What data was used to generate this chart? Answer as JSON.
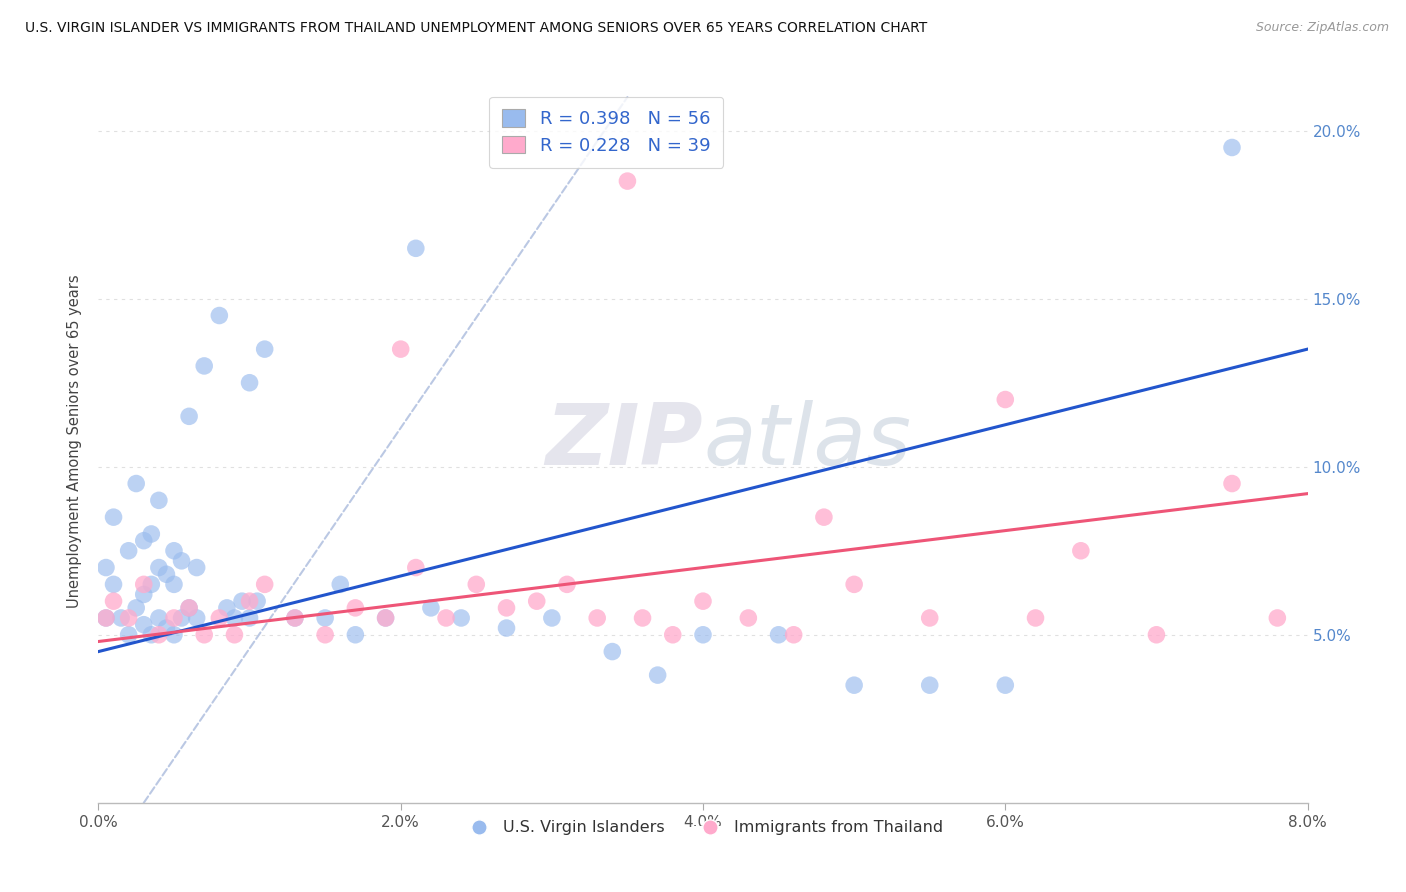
{
  "title": "U.S. VIRGIN ISLANDER VS IMMIGRANTS FROM THAILAND UNEMPLOYMENT AMONG SENIORS OVER 65 YEARS CORRELATION CHART",
  "source": "Source: ZipAtlas.com",
  "ylabel": "Unemployment Among Seniors over 65 years",
  "xlim": [
    0.0,
    8.0
  ],
  "ylim": [
    0.0,
    21.5
  ],
  "ytick_vals": [
    5.0,
    10.0,
    15.0,
    20.0
  ],
  "xtick_vals": [
    0.0,
    2.0,
    4.0,
    6.0,
    8.0
  ],
  "R_blue": 0.398,
  "N_blue": 56,
  "R_pink": 0.228,
  "N_pink": 39,
  "legend_label_blue": "U.S. Virgin Islanders",
  "legend_label_pink": "Immigrants from Thailand",
  "blue_scatter_color": "#99BBEE",
  "pink_scatter_color": "#FFAACC",
  "blue_line_color": "#2255CC",
  "pink_line_color": "#EE5577",
  "diag_line_color": "#AABBDD",
  "watermark_color": "#DDDDEE",
  "right_tick_color": "#5588CC",
  "blue_scatter_x": [
    0.05,
    0.05,
    0.1,
    0.1,
    0.15,
    0.2,
    0.2,
    0.25,
    0.25,
    0.3,
    0.3,
    0.3,
    0.35,
    0.35,
    0.35,
    0.4,
    0.4,
    0.4,
    0.45,
    0.45,
    0.5,
    0.5,
    0.5,
    0.55,
    0.55,
    0.6,
    0.6,
    0.65,
    0.65,
    0.7,
    0.8,
    0.85,
    0.9,
    0.95,
    1.0,
    1.0,
    1.05,
    1.1,
    1.3,
    1.5,
    1.6,
    1.7,
    1.9,
    2.1,
    2.2,
    2.4,
    2.7,
    3.0,
    3.4,
    3.7,
    4.0,
    4.5,
    5.0,
    5.5,
    6.0,
    7.5
  ],
  "blue_scatter_y": [
    5.5,
    7.0,
    6.5,
    8.5,
    5.5,
    5.0,
    7.5,
    5.8,
    9.5,
    5.3,
    6.2,
    7.8,
    5.0,
    6.5,
    8.0,
    5.5,
    7.0,
    9.0,
    5.2,
    6.8,
    5.0,
    6.5,
    7.5,
    5.5,
    7.2,
    5.8,
    11.5,
    5.5,
    7.0,
    13.0,
    14.5,
    5.8,
    5.5,
    6.0,
    5.5,
    12.5,
    6.0,
    13.5,
    5.5,
    5.5,
    6.5,
    5.0,
    5.5,
    16.5,
    5.8,
    5.5,
    5.2,
    5.5,
    4.5,
    3.8,
    5.0,
    5.0,
    3.5,
    3.5,
    3.5,
    19.5
  ],
  "pink_scatter_x": [
    0.05,
    0.1,
    0.2,
    0.3,
    0.4,
    0.5,
    0.6,
    0.7,
    0.8,
    0.9,
    1.0,
    1.1,
    1.3,
    1.5,
    1.7,
    1.9,
    2.1,
    2.3,
    2.5,
    2.7,
    2.9,
    3.1,
    3.3,
    3.5,
    3.6,
    3.8,
    4.0,
    4.3,
    4.6,
    5.0,
    5.5,
    6.0,
    6.5,
    7.0,
    7.5,
    7.8,
    4.8,
    2.0,
    6.2
  ],
  "pink_scatter_y": [
    5.5,
    6.0,
    5.5,
    6.5,
    5.0,
    5.5,
    5.8,
    5.0,
    5.5,
    5.0,
    6.0,
    6.5,
    5.5,
    5.0,
    5.8,
    5.5,
    7.0,
    5.5,
    6.5,
    5.8,
    6.0,
    6.5,
    5.5,
    18.5,
    5.5,
    5.0,
    6.0,
    5.5,
    5.0,
    6.5,
    5.5,
    12.0,
    7.5,
    5.0,
    9.5,
    5.5,
    8.5,
    13.5,
    5.5
  ],
  "blue_trend_x0": 0.0,
  "blue_trend_y0": 4.5,
  "blue_trend_x1": 8.0,
  "blue_trend_y1": 13.5,
  "pink_trend_x0": 0.0,
  "pink_trend_y0": 4.8,
  "pink_trend_x1": 8.0,
  "pink_trend_y1": 9.2
}
